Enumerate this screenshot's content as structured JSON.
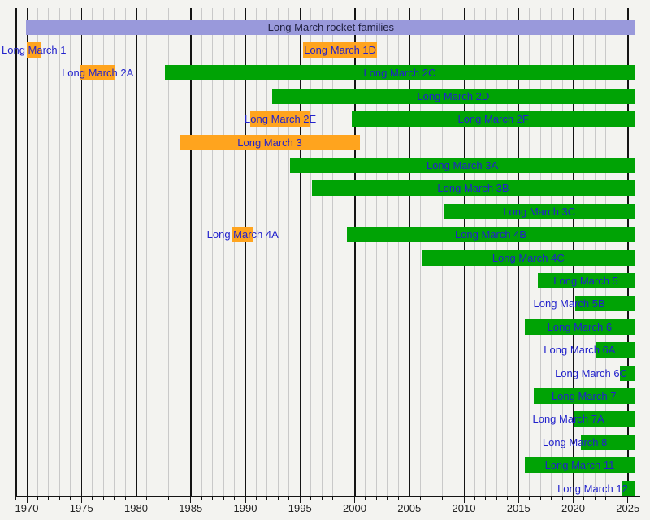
{
  "title": "Long March rocket families",
  "colors": {
    "active": "#00A305",
    "retired": "#FFA41E",
    "family": "#9999DB",
    "label_text": "#2222CC",
    "header_text": "#202040",
    "axis_text": "#222222"
  },
  "chart_data": {
    "type": "gantt",
    "title": "Long March rocket families",
    "xlabel": "",
    "ylabel": "",
    "grid": "vertical, yearly minor lines with bold lines every 5 years",
    "legend_position": "none",
    "axis": {
      "min_year": 1969,
      "max_year": 2026,
      "present_end": 2025.6,
      "tick_labels": [
        "1970",
        "1975",
        "1980",
        "1985",
        "1990",
        "1995",
        "2000",
        "2005",
        "2010",
        "2015",
        "2020",
        "2025"
      ]
    },
    "rows": [
      {
        "bars": [
          {
            "name": "Long March rocket families",
            "start": 1969.93,
            "end": 2025.7,
            "status": "family"
          }
        ]
      },
      {
        "bars": [
          {
            "name": "Long March 1",
            "start": 1970.0,
            "end": 1971.3,
            "status": "retired"
          },
          {
            "name": "Long March 1D",
            "start": 1995.3,
            "end": 2002.05,
            "status": "retired"
          }
        ]
      },
      {
        "bars": [
          {
            "name": "Long March 2A",
            "start": 1974.85,
            "end": 1978.1,
            "status": "retired"
          },
          {
            "name": "Long March 2C",
            "start": 1982.65,
            "end": 2025.6,
            "status": "active"
          }
        ]
      },
      {
        "bars": [
          {
            "name": "Long March 2D",
            "start": 1992.45,
            "end": 2025.6,
            "status": "active"
          }
        ]
      },
      {
        "bars": [
          {
            "name": "Long March 2E",
            "start": 1990.45,
            "end": 1995.95,
            "status": "retired"
          },
          {
            "name": "Long March 2F",
            "start": 1999.75,
            "end": 2025.6,
            "status": "active"
          }
        ]
      },
      {
        "bars": [
          {
            "name": "Long March 3",
            "start": 1984.0,
            "end": 2000.5,
            "status": "retired"
          }
        ]
      },
      {
        "bars": [
          {
            "name": "Long March 3A",
            "start": 1994.1,
            "end": 2025.6,
            "status": "active"
          }
        ]
      },
      {
        "bars": [
          {
            "name": "Long March 3B",
            "start": 1996.1,
            "end": 2025.6,
            "status": "active"
          }
        ]
      },
      {
        "bars": [
          {
            "name": "Long March 3C",
            "start": 2008.2,
            "end": 2025.6,
            "status": "active"
          }
        ]
      },
      {
        "bars": [
          {
            "name": "Long March 4A",
            "start": 1988.75,
            "end": 1990.75,
            "status": "retired"
          },
          {
            "name": "Long March 4B",
            "start": 1999.3,
            "end": 2025.6,
            "status": "active"
          }
        ]
      },
      {
        "bars": [
          {
            "name": "Long March 4C",
            "start": 2006.2,
            "end": 2025.6,
            "status": "active"
          }
        ]
      },
      {
        "bars": [
          {
            "name": "Long March 5",
            "start": 2016.75,
            "end": 2025.6,
            "status": "active"
          }
        ]
      },
      {
        "bars": [
          {
            "name": "Long March 5B",
            "start": 2020.2,
            "end": 2025.6,
            "status": "active"
          }
        ]
      },
      {
        "bars": [
          {
            "name": "Long March 6",
            "start": 2015.6,
            "end": 2025.6,
            "status": "active"
          }
        ]
      },
      {
        "bars": [
          {
            "name": "Long March 6A",
            "start": 2022.1,
            "end": 2025.6,
            "status": "active"
          }
        ]
      },
      {
        "bars": [
          {
            "name": "Long March 6C",
            "start": 2024.3,
            "end": 2025.6,
            "status": "active"
          }
        ]
      },
      {
        "bars": [
          {
            "name": "Long March 7",
            "start": 2016.4,
            "end": 2025.6,
            "status": "active"
          }
        ]
      },
      {
        "bars": [
          {
            "name": "Long March 7A",
            "start": 2020.05,
            "end": 2025.6,
            "status": "active"
          }
        ]
      },
      {
        "bars": [
          {
            "name": "Long March 8",
            "start": 2020.7,
            "end": 2025.6,
            "status": "active"
          }
        ]
      },
      {
        "bars": [
          {
            "name": "Long March 11",
            "start": 2015.6,
            "end": 2025.6,
            "status": "active"
          }
        ]
      },
      {
        "bars": [
          {
            "name": "Long March 12",
            "start": 2024.45,
            "end": 2025.6,
            "status": "active"
          }
        ]
      }
    ]
  }
}
